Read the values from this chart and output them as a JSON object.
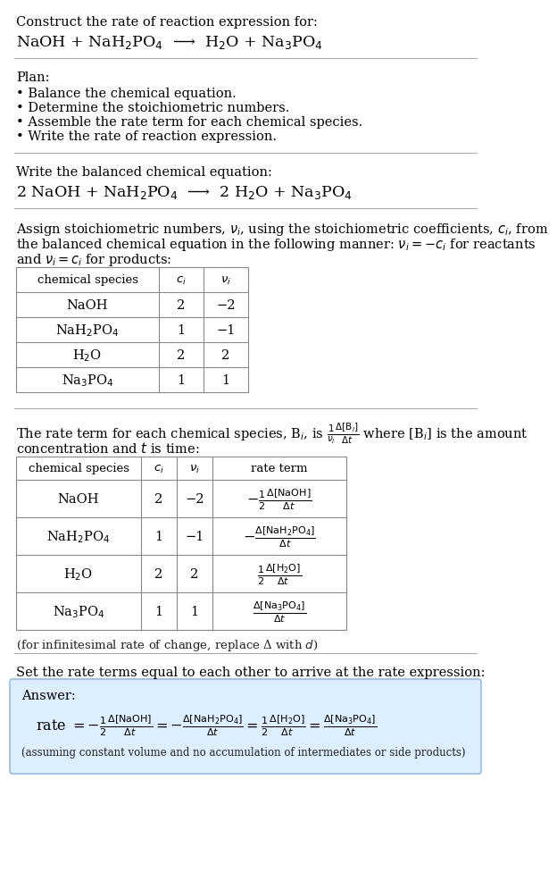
{
  "title_line1": "Construct the rate of reaction expression for:",
  "title_line2": "NaOH + NaH$_2$PO$_4$  ⟶  H$_2$O + Na$_3$PO$_4$",
  "plan_header": "Plan:",
  "plan_items": [
    "• Balance the chemical equation.",
    "• Determine the stoichiometric numbers.",
    "• Assemble the rate term for each chemical species.",
    "• Write the rate of reaction expression."
  ],
  "balanced_header": "Write the balanced chemical equation:",
  "balanced_eq": "2 NaOH + NaH$_2$PO$_4$  ⟶  2 H$_2$O + Na$_3$PO$_4$",
  "assign_text1": "Assign stoichiometric numbers, $\\nu_i$, using the stoichiometric coefficients, $c_i$, from",
  "assign_text2": "the balanced chemical equation in the following manner: $\\nu_i = -c_i$ for reactants",
  "assign_text3": "and $\\nu_i = c_i$ for products:",
  "table1_headers": [
    "chemical species",
    "$c_i$",
    "$\\nu_i$"
  ],
  "table1_rows": [
    [
      "NaOH",
      "2",
      "−2"
    ],
    [
      "NaH$_2$PO$_4$",
      "1",
      "−1"
    ],
    [
      "H$_2$O",
      "2",
      "2"
    ],
    [
      "Na$_3$PO$_4$",
      "1",
      "1"
    ]
  ],
  "rate_term_text1": "The rate term for each chemical species, B$_i$, is $\\frac{1}{\\nu_i}\\frac{\\Delta[\\mathrm{B}_i]}{\\Delta t}$ where [B$_i$] is the amount",
  "rate_term_text2": "concentration and $t$ is time:",
  "table2_headers": [
    "chemical species",
    "$c_i$",
    "$\\nu_i$",
    "rate term"
  ],
  "table2_rows": [
    [
      "NaOH",
      "2",
      "−2",
      "$-\\frac{1}{2}\\frac{\\Delta[\\mathrm{NaOH}]}{\\Delta t}$"
    ],
    [
      "NaH$_2$PO$_4$",
      "1",
      "−1",
      "$-\\frac{\\Delta[\\mathrm{NaH_2PO_4}]}{\\Delta t}$"
    ],
    [
      "H$_2$O",
      "2",
      "2",
      "$\\frac{1}{2}\\frac{\\Delta[\\mathrm{H_2O}]}{\\Delta t}$"
    ],
    [
      "Na$_3$PO$_4$",
      "1",
      "1",
      "$\\frac{\\Delta[\\mathrm{Na_3PO_4}]}{\\Delta t}$"
    ]
  ],
  "infinitesimal_note": "(for infinitesimal rate of change, replace Δ with $d$)",
  "set_rate_text": "Set the rate terms equal to each other to arrive at the rate expression:",
  "answer_label": "Answer:",
  "answer_box_color": "#ddeeff",
  "answer_box_border": "#99bbdd",
  "rate_expression": "rate $= -\\frac{1}{2}\\frac{\\Delta[\\mathrm{NaOH}]}{\\Delta t} = -\\frac{\\Delta[\\mathrm{NaH_2PO_4}]}{\\Delta t} = \\frac{1}{2}\\frac{\\Delta[\\mathrm{H_2O}]}{\\Delta t} = \\frac{\\Delta[\\mathrm{Na_3PO_4}]}{\\Delta t}$",
  "assuming_note": "(assuming constant volume and no accumulation of intermediates or side products)",
  "bg_color": "#ffffff",
  "text_color": "#000000",
  "sep_color": "#aaaaaa",
  "table_color": "#888888",
  "fs": 10.5,
  "fs_small": 9.5,
  "fs_title": 12.5
}
